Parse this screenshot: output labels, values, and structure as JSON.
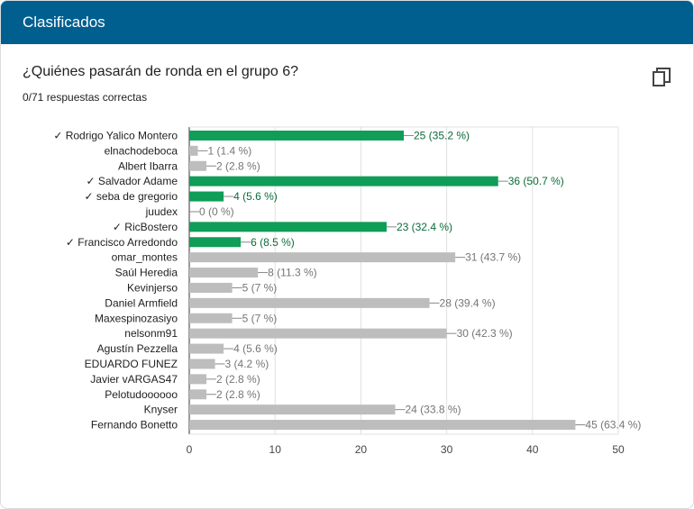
{
  "header": {
    "title": "Clasificados"
  },
  "question": {
    "title": "¿Quiénes pasarán de ronda en el grupo 6?",
    "score": "0/71 respuestas correctas"
  },
  "icons": {
    "copy": "copy-icon"
  },
  "colors": {
    "header_bg": "#005f8f",
    "correct": "#0f9d58",
    "incorrect": "#bdbdbd",
    "correct_label": "#0b6b3a",
    "grid": "#e0e0e0"
  },
  "chart_data": {
    "type": "bar",
    "orientation": "horizontal",
    "categories": [
      "✓ Rodrigo Yalico Montero",
      "elnachodeboca",
      "Albert Ibarra",
      "✓ Salvador Adame",
      "✓ seba de gregorio",
      "juudex",
      "✓ RicBostero",
      "✓ Francisco Arredondo",
      "omar_montes",
      "Saúl Heredia",
      "Kevinjerso",
      "Daniel Armfield",
      "Maxespinozasiyo",
      "nelsonm91",
      "Agustín Pezzella",
      "EDUARDO FUNEZ",
      "Javier vARGAS47",
      "Pelotudoooooo",
      "Knyser",
      "Fernando Bonetto"
    ],
    "values": [
      25,
      1,
      2,
      36,
      4,
      0,
      23,
      6,
      31,
      8,
      5,
      28,
      5,
      30,
      4,
      3,
      2,
      2,
      24,
      45
    ],
    "labels": [
      "25 (35.2 %)",
      "1 (1.4 %)",
      "2 (2.8 %)",
      "36 (50.7 %)",
      "4 (5.6 %)",
      "0 (0 %)",
      "23 (32.4 %)",
      "6 (8.5 %)",
      "31 (43.7 %)",
      "8 (11.3 %)",
      "5 (7 %)",
      "28 (39.4 %)",
      "5 (7 %)",
      "30 (42.3 %)",
      "4 (5.6 %)",
      "3 (4.2 %)",
      "2 (2.8 %)",
      "2 (2.8 %)",
      "24 (33.8 %)",
      "45 (63.4 %)"
    ],
    "correct": [
      true,
      false,
      false,
      true,
      true,
      false,
      true,
      true,
      false,
      false,
      false,
      false,
      false,
      false,
      false,
      false,
      false,
      false,
      false,
      false
    ],
    "xlim": [
      0,
      50
    ],
    "xticks": [
      "0",
      "10",
      "20",
      "30",
      "40",
      "50"
    ],
    "grid": true
  }
}
